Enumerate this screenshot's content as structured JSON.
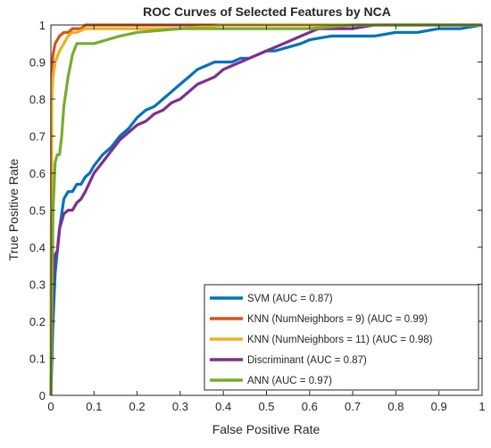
{
  "chart_data": {
    "type": "line",
    "title": "ROC Curves of Selected Features by NCA",
    "xlabel": "False Positive Rate",
    "ylabel": "True Positive Rate",
    "xlim": [
      0,
      1
    ],
    "ylim": [
      0,
      1
    ],
    "x_ticks": [
      "0",
      "0.1",
      "0.2",
      "0.3",
      "0.4",
      "0.5",
      "0.6",
      "0.7",
      "0.8",
      "0.9",
      "1"
    ],
    "y_ticks": [
      "0",
      "0.1",
      "0.2",
      "0.3",
      "0.4",
      "0.5",
      "0.6",
      "0.7",
      "0.8",
      "0.9",
      "1"
    ],
    "grid": false,
    "legend_position": "bottom-right",
    "series": [
      {
        "name": "SVM (AUC = 0.87)",
        "color": "#0072BD",
        "x": [
          0,
          0.005,
          0.01,
          0.02,
          0.03,
          0.04,
          0.05,
          0.06,
          0.07,
          0.08,
          0.09,
          0.1,
          0.12,
          0.14,
          0.16,
          0.18,
          0.2,
          0.22,
          0.24,
          0.26,
          0.28,
          0.3,
          0.32,
          0.34,
          0.36,
          0.38,
          0.4,
          0.42,
          0.44,
          0.46,
          0.48,
          0.5,
          0.52,
          0.55,
          0.58,
          0.6,
          0.65,
          0.7,
          0.75,
          0.8,
          0.85,
          0.9,
          0.95,
          1
        ],
        "y": [
          0,
          0.2,
          0.33,
          0.45,
          0.53,
          0.55,
          0.55,
          0.57,
          0.57,
          0.59,
          0.6,
          0.62,
          0.65,
          0.67,
          0.7,
          0.72,
          0.75,
          0.77,
          0.78,
          0.8,
          0.82,
          0.84,
          0.86,
          0.88,
          0.89,
          0.9,
          0.9,
          0.9,
          0.91,
          0.91,
          0.92,
          0.93,
          0.93,
          0.94,
          0.95,
          0.96,
          0.97,
          0.97,
          0.97,
          0.98,
          0.98,
          0.99,
          0.99,
          1
        ]
      },
      {
        "name": "KNN (NumNeighbors = 9) (AUC = 0.99)",
        "color": "#D95319",
        "x": [
          0,
          0.002,
          0.005,
          0.01,
          0.02,
          0.03,
          0.04,
          0.05,
          0.06,
          0.07,
          0.08,
          0.09,
          0.1,
          1
        ],
        "y": [
          0,
          0.88,
          0.92,
          0.95,
          0.97,
          0.98,
          0.98,
          0.99,
          0.99,
          0.99,
          1,
          1,
          1,
          1
        ]
      },
      {
        "name": "KNN (NumNeighbors = 11) (AUC = 0.98)",
        "color": "#EDB120",
        "x": [
          0,
          0.002,
          0.005,
          0.01,
          0.02,
          0.03,
          0.04,
          0.05,
          0.06,
          0.08,
          0.1,
          0.15,
          0.2,
          0.3,
          0.4,
          0.5,
          1
        ],
        "y": [
          0,
          0.8,
          0.86,
          0.9,
          0.93,
          0.95,
          0.97,
          0.98,
          0.98,
          0.99,
          0.99,
          0.99,
          0.99,
          0.99,
          1,
          1,
          1
        ]
      },
      {
        "name": "Discriminant (AUC = 0.87)",
        "color": "#7E2F8E",
        "x": [
          0,
          0.005,
          0.01,
          0.015,
          0.02,
          0.03,
          0.04,
          0.05,
          0.06,
          0.07,
          0.08,
          0.1,
          0.12,
          0.14,
          0.16,
          0.18,
          0.2,
          0.22,
          0.24,
          0.26,
          0.28,
          0.3,
          0.32,
          0.34,
          0.36,
          0.38,
          0.4,
          0.42,
          0.44,
          0.46,
          0.48,
          0.5,
          0.52,
          0.54,
          0.56,
          0.58,
          0.6,
          0.62,
          0.65,
          0.7,
          0.75,
          0.8,
          0.9,
          1
        ],
        "y": [
          0,
          0.3,
          0.38,
          0.39,
          0.45,
          0.49,
          0.5,
          0.5,
          0.52,
          0.53,
          0.55,
          0.6,
          0.63,
          0.66,
          0.69,
          0.71,
          0.73,
          0.74,
          0.76,
          0.77,
          0.79,
          0.8,
          0.82,
          0.84,
          0.85,
          0.86,
          0.88,
          0.89,
          0.9,
          0.91,
          0.92,
          0.93,
          0.94,
          0.95,
          0.96,
          0.97,
          0.98,
          0.99,
          0.99,
          0.99,
          1,
          1,
          1,
          1
        ]
      },
      {
        "name": "ANN (AUC = 0.97)",
        "color": "#77AC30",
        "x": [
          0,
          0.005,
          0.01,
          0.015,
          0.02,
          0.025,
          0.03,
          0.04,
          0.05,
          0.06,
          0.08,
          0.1,
          0.13,
          0.16,
          0.2,
          0.3,
          0.4,
          0.5,
          0.6,
          0.7,
          0.8,
          0.9,
          1
        ],
        "y": [
          0,
          0.5,
          0.63,
          0.65,
          0.65,
          0.7,
          0.78,
          0.86,
          0.92,
          0.95,
          0.95,
          0.95,
          0.96,
          0.97,
          0.98,
          0.99,
          0.99,
          0.99,
          0.99,
          1,
          1,
          1,
          1
        ]
      }
    ]
  }
}
